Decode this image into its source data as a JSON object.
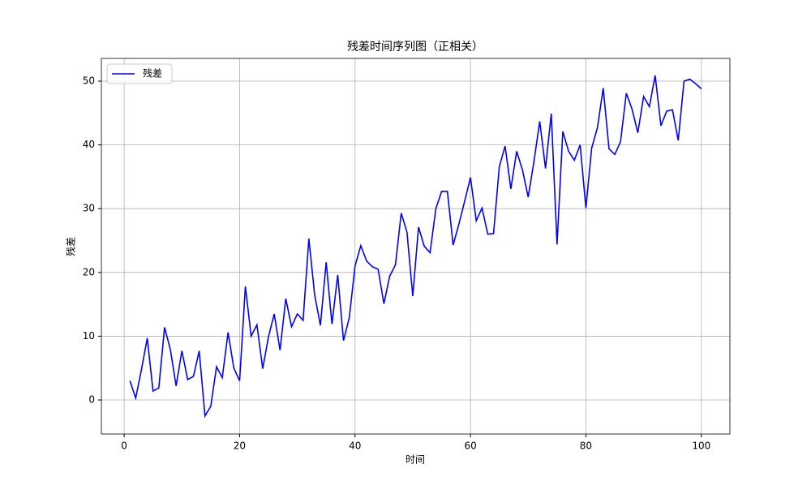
{
  "chart_data": {
    "type": "line",
    "title": "残差时间序列图（正相关）",
    "x_label": "时间",
    "y_label": "残差",
    "x": [
      1,
      2,
      3,
      4,
      5,
      6,
      7,
      8,
      9,
      10,
      11,
      12,
      13,
      14,
      15,
      16,
      17,
      18,
      19,
      20,
      21,
      22,
      23,
      24,
      25,
      26,
      27,
      28,
      29,
      30,
      31,
      32,
      33,
      34,
      35,
      36,
      37,
      38,
      39,
      40,
      41,
      42,
      43,
      44,
      45,
      46,
      47,
      48,
      49,
      50,
      51,
      52,
      53,
      54,
      55,
      56,
      57,
      58,
      59,
      60,
      61,
      62,
      63,
      64,
      65,
      66,
      67,
      68,
      69,
      70,
      71,
      72,
      73,
      74,
      75,
      76,
      77,
      78,
      79,
      80,
      81,
      82,
      83,
      84,
      85,
      86,
      87,
      88,
      89,
      90,
      91,
      92,
      93,
      94,
      95,
      96,
      97,
      98,
      99,
      100
    ],
    "series": [
      {
        "name": "残差",
        "color": "#0000ff",
        "values": [
          3.0,
          0.3,
          4.8,
          9.7,
          1.4,
          1.9,
          11.4,
          7.9,
          2.2,
          7.7,
          3.2,
          3.7,
          7.7,
          -2.5,
          -1.0,
          5.2,
          3.5,
          10.6,
          5.0,
          3.0,
          17.8,
          10.0,
          11.8,
          4.9,
          9.9,
          13.5,
          7.8,
          15.9,
          11.5,
          13.5,
          12.5,
          25.3,
          16.5,
          11.7,
          21.6,
          11.9,
          19.6,
          9.3,
          12.9,
          21.0,
          24.2,
          21.8,
          20.9,
          20.5,
          15.1,
          19.4,
          21.2,
          29.3,
          26.3,
          16.3,
          27.1,
          24.1,
          23.1,
          30.0,
          32.7,
          32.7,
          24.3,
          27.6,
          31.2,
          34.9,
          28.1,
          30.1,
          26.0,
          26.1,
          36.6,
          39.8,
          33.1,
          39.0,
          36.1,
          31.8,
          37.4,
          43.7,
          36.3,
          44.9,
          24.4,
          42.1,
          39.0,
          37.6,
          40.0,
          30.1,
          39.5,
          42.7,
          48.9,
          39.4,
          38.5,
          40.5,
          48.1,
          45.6,
          41.9,
          47.6,
          46.0,
          50.9,
          43.0,
          45.3,
          45.5,
          40.7,
          50.0,
          50.3,
          49.6,
          48.8
        ]
      }
    ],
    "xlim": [
      -3.95,
      104.95
    ],
    "ylim": [
      -5.34,
      53.56
    ],
    "xticks": [
      0,
      20,
      40,
      60,
      80,
      100
    ],
    "yticks": [
      0,
      10,
      20,
      30,
      40,
      50
    ],
    "grid": true,
    "legend": "upper-left"
  }
}
